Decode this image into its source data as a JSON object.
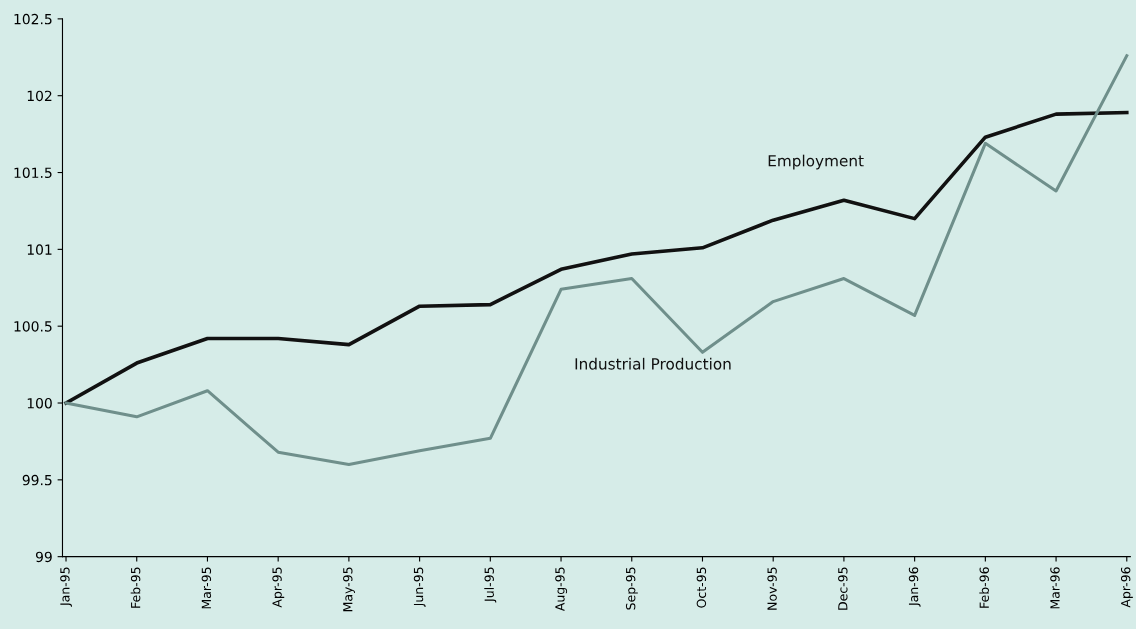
{
  "chart_data": {
    "type": "line",
    "categories": [
      "Jan-95",
      "Feb-95",
      "Mar-95",
      "Apr-95",
      "May-95",
      "Jun-95",
      "Jul-95",
      "Aug-95",
      "Sep-95",
      "Oct-95",
      "Nov-95",
      "Dec-95",
      "Jan-96",
      "Feb-96",
      "Mar-96",
      "Apr-96"
    ],
    "series": [
      {
        "name": "Employment",
        "color": "#111111",
        "values": [
          100.0,
          100.26,
          100.42,
          100.42,
          100.38,
          100.63,
          100.64,
          100.87,
          100.97,
          101.01,
          101.19,
          101.32,
          101.2,
          101.73,
          101.88,
          101.89
        ]
      },
      {
        "name": "Industrial Production",
        "color": "#6f8f8b",
        "values": [
          100.0,
          99.91,
          100.08,
          99.68,
          99.6,
          99.69,
          99.77,
          100.74,
          100.81,
          100.33,
          100.66,
          100.81,
          100.57,
          101.69,
          101.38,
          102.26
        ]
      }
    ],
    "ylim": [
      99,
      102.5
    ],
    "yticks": [
      {
        "value": 99,
        "label": "99"
      },
      {
        "value": 99.5,
        "label": "99.5"
      },
      {
        "value": 100,
        "label": "100"
      },
      {
        "value": 100.5,
        "label": "100.5"
      },
      {
        "value": 101,
        "label": "101"
      },
      {
        "value": 101.5,
        "label": "101.5"
      },
      {
        "value": 102,
        "label": "102"
      },
      {
        "value": 102.5,
        "label": "102.5"
      }
    ],
    "grid": false,
    "legend": false,
    "marker": "none",
    "line_style": "solid"
  }
}
